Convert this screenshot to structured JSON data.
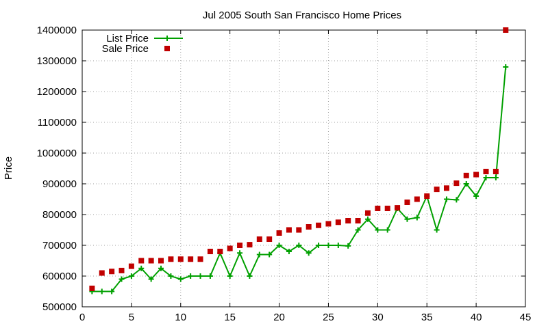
{
  "chart_data": {
    "type": "line",
    "title": "Jul 2005 South San Francisco Home Prices",
    "xlabel": "",
    "ylabel": "Price",
    "xlim": [
      0,
      45
    ],
    "ylim": [
      500000,
      1400000
    ],
    "xticks": [
      0,
      5,
      10,
      15,
      20,
      25,
      30,
      35,
      40,
      45
    ],
    "yticks": [
      500000,
      600000,
      700000,
      800000,
      900000,
      1000000,
      1100000,
      1200000,
      1300000,
      1400000
    ],
    "grid": true,
    "legend_position": "top-left",
    "colors": {
      "list_price": "#00a000",
      "sale_price": "#c00000",
      "grid": "#a0a0a0"
    },
    "series": [
      {
        "name": "List Price",
        "kind": "line-with-plus-markers",
        "x": [
          1,
          2,
          3,
          4,
          5,
          6,
          7,
          8,
          9,
          10,
          11,
          12,
          13,
          14,
          15,
          16,
          17,
          18,
          19,
          20,
          21,
          22,
          23,
          24,
          25,
          26,
          27,
          28,
          29,
          30,
          31,
          32,
          33,
          34,
          35,
          36,
          37,
          38,
          39,
          40,
          41,
          42,
          43
        ],
        "values": [
          550000,
          550000,
          550000,
          590000,
          600000,
          625000,
          590000,
          625000,
          600000,
          590000,
          600000,
          600000,
          600000,
          675000,
          600000,
          675000,
          600000,
          670000,
          670000,
          700000,
          680000,
          700000,
          675000,
          700000,
          700000,
          700000,
          698000,
          750000,
          785000,
          750000,
          750000,
          820000,
          785000,
          790000,
          860000,
          750000,
          850000,
          848000,
          900000,
          860000,
          920000,
          920000,
          1280000
        ]
      },
      {
        "name": "Sale Price",
        "kind": "square-markers",
        "x": [
          1,
          2,
          3,
          4,
          5,
          6,
          7,
          8,
          9,
          10,
          11,
          12,
          13,
          14,
          15,
          16,
          17,
          18,
          19,
          20,
          21,
          22,
          23,
          24,
          25,
          26,
          27,
          28,
          29,
          30,
          31,
          32,
          33,
          34,
          35,
          36,
          37,
          38,
          39,
          40,
          41,
          42,
          43
        ],
        "values": [
          560000,
          610000,
          615000,
          618000,
          632000,
          650000,
          650000,
          650000,
          655000,
          655000,
          655000,
          655000,
          680000,
          680000,
          690000,
          700000,
          702000,
          720000,
          720000,
          740000,
          750000,
          750000,
          760000,
          765000,
          770000,
          775000,
          780000,
          780000,
          805000,
          820000,
          820000,
          822000,
          840000,
          850000,
          860000,
          882000,
          886000,
          902000,
          927000,
          930000,
          940000,
          940000,
          1400000
        ]
      }
    ]
  }
}
